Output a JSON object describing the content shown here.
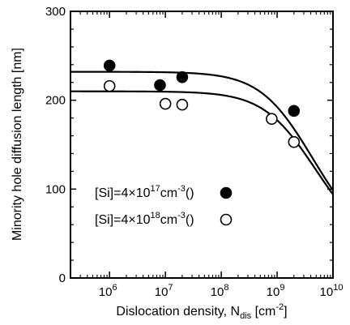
{
  "chart_data": {
    "type": "scatter",
    "xlabel": {
      "main": "Dislocation density, N",
      "sub": "dis",
      "unit_open": " [cm",
      "unit_sup": "-2",
      "unit_close": "]"
    },
    "ylabel": "Minority hole diffusion length [nm]",
    "x_scale": "log",
    "xlim": [
      200000,
      10000000000
    ],
    "ylim": [
      0,
      300
    ],
    "x_ticks": [
      {
        "value": 1000000,
        "base": "10",
        "exp": "6"
      },
      {
        "value": 10000000,
        "base": "10",
        "exp": "7"
      },
      {
        "value": 100000000,
        "base": "10",
        "exp": "8"
      },
      {
        "value": 1000000000,
        "base": "10",
        "exp": "9"
      },
      {
        "value": 10000000000,
        "base": "10",
        "exp": "10"
      }
    ],
    "y_ticks": [
      0,
      100,
      200,
      300
    ],
    "grid": false,
    "series": [
      {
        "name": "[Si]=4×10^17cm^-3",
        "marker": "filled-circle",
        "x": [
          1000000,
          8000000,
          20000000,
          2000000000
        ],
        "y": [
          239,
          217,
          226,
          188
        ]
      },
      {
        "name": "[Si]=4×10^18cm^-3",
        "marker": "open-circle",
        "x": [
          1000000,
          10000000,
          20000000,
          800000000,
          2000000000
        ],
        "y": [
          216,
          196,
          195,
          179,
          153
        ]
      }
    ],
    "fit_curves": [
      {
        "plateau": 232,
        "n_half": 2200000000
      },
      {
        "plateau": 210,
        "n_half": 2500000000
      }
    ],
    "legend": [
      {
        "prefix": "[Si]=4×10",
        "exp1": "17",
        "mid": "cm",
        "exp2": "-3",
        "open": "(",
        "close": ")",
        "marker": "filled-circle"
      },
      {
        "prefix": "[Si]=4×10",
        "exp1": "18",
        "mid": "cm",
        "exp2": "-3",
        "open": "(",
        "close": ")",
        "marker": "open-circle"
      }
    ],
    "legend_position": "lower-left inside plot"
  }
}
